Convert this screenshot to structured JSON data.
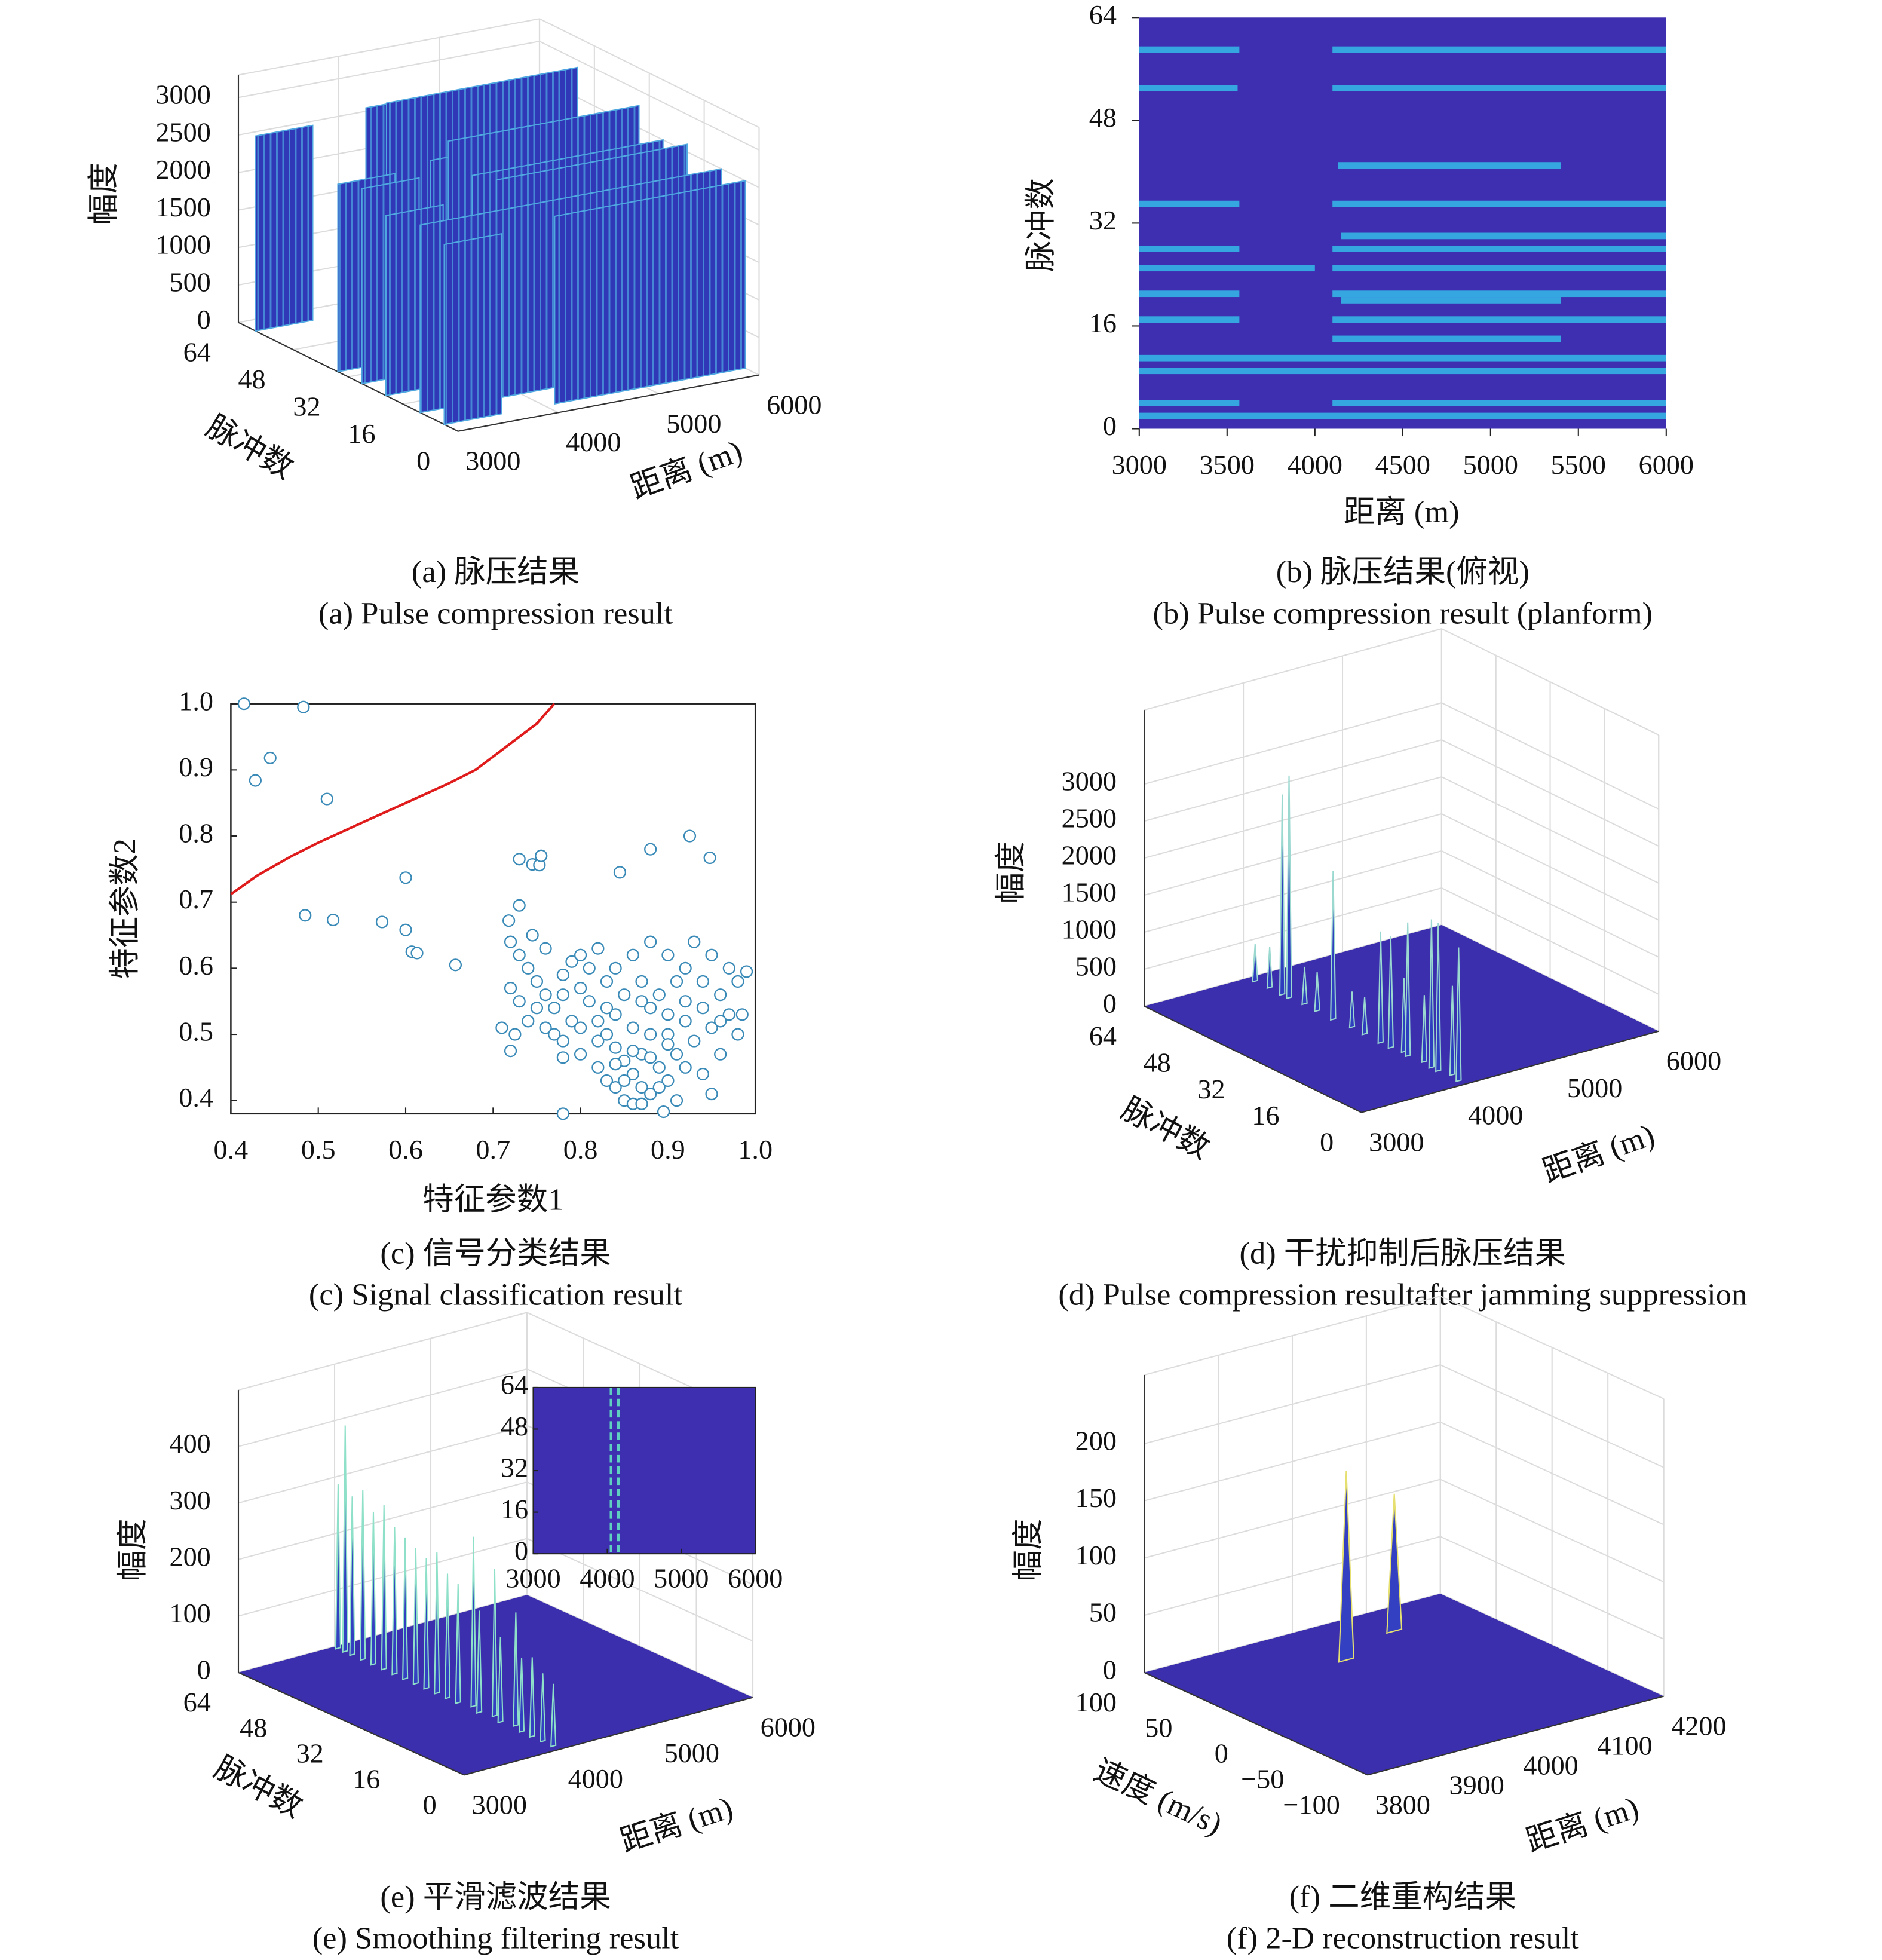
{
  "chart_data": [
    {
      "type": "surface3d",
      "caption_zh": "(a) 脉压结果",
      "caption_en": "(a) Pulse compression result",
      "xlabel": "距离 (m)",
      "ylabel": "脉冲数",
      "zlabel": "幅度",
      "xlim": [
        3000,
        6000
      ],
      "xticks": [
        3000,
        4000,
        5000,
        6000
      ],
      "ylim": [
        0,
        64
      ],
      "yticks": [
        0,
        16,
        32,
        48,
        64
      ],
      "zlim": [
        0,
        3300
      ],
      "zticks": [
        0,
        500,
        1000,
        1500,
        2000,
        2500,
        3000
      ],
      "color": "#3038b8",
      "edge_color": "#4fa8e0",
      "ridges": [
        {
          "pulse": 59,
          "from": 3000,
          "to": 3570,
          "amplitude": 2600
        },
        {
          "pulse": 59,
          "from": 4100,
          "to": 6000,
          "amplitude": 2700
        },
        {
          "pulse": 53,
          "from": 4100,
          "to": 6000,
          "amplitude": 2900
        },
        {
          "pulse": 41,
          "from": 4130,
          "to": 5400,
          "amplitude": 2400
        },
        {
          "pulse": 35,
          "from": 3000,
          "to": 3570,
          "amplitude": 2500
        },
        {
          "pulse": 35,
          "from": 4100,
          "to": 6000,
          "amplitude": 2800
        },
        {
          "pulse": 28,
          "from": 3000,
          "to": 3570,
          "amplitude": 2600
        },
        {
          "pulse": 28,
          "from": 4100,
          "to": 6000,
          "amplitude": 2500
        },
        {
          "pulse": 21,
          "from": 3000,
          "to": 3570,
          "amplitude": 2400
        },
        {
          "pulse": 21,
          "from": 4100,
          "to": 6000,
          "amplitude": 2600
        },
        {
          "pulse": 14,
          "from": 4100,
          "to": 5400,
          "amplitude": 2300
        },
        {
          "pulse": 11,
          "from": 3000,
          "to": 6000,
          "amplitude": 2500
        },
        {
          "pulse": 4,
          "from": 3000,
          "to": 3570,
          "amplitude": 2400
        },
        {
          "pulse": 4,
          "from": 4100,
          "to": 6000,
          "amplitude": 2500
        }
      ]
    },
    {
      "type": "heatmap",
      "caption_zh": "(b) 脉压结果(俯视)",
      "caption_en": "(b) Pulse compression result (planform)",
      "xlabel": "距离 (m)",
      "ylabel": "脉冲数",
      "xlim": [
        3000,
        6000
      ],
      "xticks": [
        3000,
        3500,
        4000,
        4500,
        5000,
        5500,
        6000
      ],
      "ylim": [
        0,
        64
      ],
      "yticks": [
        0,
        16,
        32,
        48,
        64
      ],
      "background_color": "#3d2fb0",
      "color": "#35b4e6",
      "stripes": [
        {
          "pulse": 59,
          "segments": [
            [
              3000,
              3570
            ],
            [
              4100,
              6000
            ]
          ]
        },
        {
          "pulse": 53,
          "segments": [
            [
              3000,
              3560
            ],
            [
              4100,
              6000
            ]
          ]
        },
        {
          "pulse": 41,
          "segments": [
            [
              4130,
              5400
            ]
          ]
        },
        {
          "pulse": 35,
          "segments": [
            [
              3000,
              3570
            ],
            [
              4100,
              6000
            ]
          ]
        },
        {
          "pulse": 30,
          "segments": [
            [
              4150,
              6000
            ]
          ]
        },
        {
          "pulse": 28,
          "segments": [
            [
              3000,
              3570
            ],
            [
              4100,
              6000
            ]
          ]
        },
        {
          "pulse": 25,
          "segments": [
            [
              3000,
              4000
            ],
            [
              4100,
              6000
            ]
          ]
        },
        {
          "pulse": 21,
          "segments": [
            [
              3000,
              3570
            ],
            [
              4100,
              6000
            ]
          ]
        },
        {
          "pulse": 20,
          "segments": [
            [
              4150,
              5400
            ]
          ]
        },
        {
          "pulse": 17,
          "segments": [
            [
              3000,
              3570
            ],
            [
              4100,
              6000
            ]
          ]
        },
        {
          "pulse": 14,
          "segments": [
            [
              4100,
              5400
            ]
          ]
        },
        {
          "pulse": 11,
          "segments": [
            [
              3000,
              6000
            ]
          ]
        },
        {
          "pulse": 9,
          "segments": [
            [
              3000,
              6000
            ]
          ]
        },
        {
          "pulse": 4,
          "segments": [
            [
              3000,
              3570
            ],
            [
              4100,
              6000
            ]
          ]
        },
        {
          "pulse": 2,
          "segments": [
            [
              3000,
              6000
            ]
          ]
        }
      ]
    },
    {
      "type": "scatter",
      "caption_zh": "(c) 信号分类结果",
      "caption_en": "(c) Signal classification result",
      "xlabel": "特征参数1",
      "ylabel": "特征参数2",
      "xlim": [
        0.4,
        1
      ],
      "xticks": [
        0.4,
        0.5,
        0.6,
        0.7,
        0.8,
        0.9,
        {
          "value": 1,
          "label": "1.0"
        }
      ],
      "ylim": [
        0.38,
        1
      ],
      "yticks": [
        0.4,
        0.5,
        0.6,
        0.7,
        0.8,
        0.9,
        {
          "value": 1,
          "label": "1.0"
        }
      ],
      "color": "#3a8ab8",
      "x": [
        0.415,
        0.483,
        0.445,
        0.428,
        0.51,
        0.485,
        0.517,
        0.573,
        0.6,
        0.6,
        0.607,
        0.613,
        0.657,
        0.73,
        0.745,
        0.753,
        0.755,
        0.73,
        0.718,
        0.745,
        0.845,
        0.88,
        0.925,
        0.948,
        0.78,
        0.895,
        0.72,
        0.78,
        0.72,
        0.73,
        0.74,
        0.71,
        0.725,
        0.75,
        0.76,
        0.77,
        0.78,
        0.79,
        0.8,
        0.81,
        0.82,
        0.83,
        0.84,
        0.85,
        0.86,
        0.87,
        0.85,
        0.83,
        0.8,
        0.82,
        0.84,
        0.86,
        0.88,
        0.9,
        0.92,
        0.94,
        0.96,
        0.98,
        0.99,
        0.97,
        0.95,
        0.93,
        0.91,
        0.89,
        0.87,
        0.88,
        0.9,
        0.92,
        0.76,
        0.78,
        0.8,
        0.82,
        0.84,
        0.86,
        0.88,
        0.9,
        0.92,
        0.94,
        0.95,
        0.96,
        0.98,
        0.985,
        0.97,
        0.95,
        0.93,
        0.91,
        0.89,
        0.87,
        0.85,
        0.83,
        0.81,
        0.79,
        0.77,
        0.75,
        0.74,
        0.73,
        0.72,
        0.76,
        0.82,
        0.84,
        0.86,
        0.88,
        0.9,
        0.92,
        0.94,
        0.96,
        0.85,
        0.87,
        0.89,
        0.91,
        0.84,
        0.86,
        0.88,
        0.9,
        0.8,
        0.78,
        0.83,
        0.87
      ],
      "y": [
        1,
        0.995,
        0.918,
        0.884,
        0.856,
        0.68,
        0.673,
        0.67,
        0.737,
        0.658,
        0.625,
        0.623,
        0.605,
        0.765,
        0.757,
        0.756,
        0.77,
        0.695,
        0.672,
        0.65,
        0.745,
        0.78,
        0.8,
        0.767,
        0.38,
        0.383,
        0.475,
        0.465,
        0.57,
        0.55,
        0.52,
        0.51,
        0.5,
        0.58,
        0.56,
        0.54,
        0.59,
        0.61,
        0.57,
        0.55,
        0.52,
        0.5,
        0.48,
        0.46,
        0.44,
        0.42,
        0.4,
        0.43,
        0.62,
        0.63,
        0.6,
        0.62,
        0.64,
        0.62,
        0.6,
        0.58,
        0.56,
        0.58,
        0.595,
        0.53,
        0.51,
        0.49,
        0.47,
        0.45,
        0.47,
        0.5,
        0.53,
        0.55,
        0.51,
        0.49,
        0.47,
        0.45,
        0.42,
        0.395,
        0.41,
        0.43,
        0.45,
        0.44,
        0.41,
        0.47,
        0.5,
        0.53,
        0.6,
        0.62,
        0.64,
        0.58,
        0.56,
        0.58,
        0.56,
        0.58,
        0.6,
        0.52,
        0.5,
        0.54,
        0.6,
        0.62,
        0.64,
        0.63,
        0.49,
        0.53,
        0.51,
        0.54,
        0.5,
        0.52,
        0.54,
        0.52,
        0.43,
        0.395,
        0.42,
        0.4,
        0.455,
        0.475,
        0.465,
        0.485,
        0.51,
        0.56,
        0.54,
        0.55
      ],
      "boundary": {
        "color": "#e01b1b",
        "x": [
          0.4,
          0.43,
          0.47,
          0.5,
          0.55,
          0.6,
          0.65,
          0.68,
          0.72,
          0.75,
          0.77
        ],
        "y": [
          0.712,
          0.74,
          0.77,
          0.79,
          0.82,
          0.85,
          0.88,
          0.9,
          0.94,
          0.97,
          1
        ]
      }
    },
    {
      "type": "surface3d",
      "caption_zh": "(d) 干扰抑制后脉压结果",
      "caption_en": "(d) Pulse compression resultafter jamming suppression",
      "xlabel": "距离 (m)",
      "ylabel": "脉冲数",
      "zlabel": "幅度",
      "xlim": [
        3000,
        6000
      ],
      "xticks": [
        3000,
        4000,
        5000,
        6000
      ],
      "ylim": [
        0,
        64
      ],
      "yticks": [
        0,
        16,
        32,
        48,
        64
      ],
      "zlim": [
        0,
        4000
      ],
      "zticks": [
        0,
        500,
        1000,
        1500,
        2000,
        2500,
        3000
      ],
      "floor_color": "#3b2fae",
      "color": "#2f3dbf",
      "edge_color": "#9ad8d0",
      "peaks": [
        {
          "x": 4050,
          "y": 62,
          "z": 500
        },
        {
          "x": 4060,
          "y": 58,
          "z": 550
        },
        {
          "x": 4050,
          "y": 54,
          "z": 2700
        },
        {
          "x": 4050,
          "y": 52,
          "z": 3000
        },
        {
          "x": 4070,
          "y": 48,
          "z": 500
        },
        {
          "x": 4060,
          "y": 44,
          "z": 520
        },
        {
          "x": 4050,
          "y": 39,
          "z": 2000
        },
        {
          "x": 4070,
          "y": 34,
          "z": 480
        },
        {
          "x": 4060,
          "y": 30,
          "z": 500
        },
        {
          "x": 4050,
          "y": 25,
          "z": 1500
        },
        {
          "x": 4050,
          "y": 22,
          "z": 1500
        },
        {
          "x": 4080,
          "y": 19,
          "z": 1000
        },
        {
          "x": 4050,
          "y": 17,
          "z": 1800
        },
        {
          "x": 4080,
          "y": 13,
          "z": 900
        },
        {
          "x": 4050,
          "y": 10,
          "z": 2000
        },
        {
          "x": 4050,
          "y": 8,
          "z": 2000
        },
        {
          "x": 4090,
          "y": 5,
          "z": 1200
        },
        {
          "x": 4050,
          "y": 2,
          "z": 1800
        }
      ]
    },
    {
      "type": "surface3d",
      "caption_zh": "(e) 平滑滤波结果",
      "caption_en": "(e) Smoothing filtering result",
      "xlabel": "距离 (m)",
      "ylabel": "脉冲数",
      "zlabel": "幅度",
      "xlim": [
        3000,
        6000
      ],
      "xticks": [
        3000,
        4000,
        5000,
        6000
      ],
      "ylim": [
        0,
        64
      ],
      "yticks": [
        0,
        16,
        32,
        48,
        64
      ],
      "zlim": [
        0,
        500
      ],
      "zticks": [
        0,
        100,
        200,
        300,
        400
      ],
      "floor_color": "#3b2fae",
      "color": "#3440c2",
      "edge_color": "#8fe0c8",
      "peaks": [
        {
          "x": 4000,
          "y": 63,
          "z": 290
        },
        {
          "x": 4000,
          "y": 61,
          "z": 400
        },
        {
          "x": 4000,
          "y": 59,
          "z": 280
        },
        {
          "x": 4000,
          "y": 56,
          "z": 300
        },
        {
          "x": 4000,
          "y": 53,
          "z": 270
        },
        {
          "x": 4000,
          "y": 50,
          "z": 290
        },
        {
          "x": 4000,
          "y": 47,
          "z": 260
        },
        {
          "x": 4000,
          "y": 44,
          "z": 250
        },
        {
          "x": 4000,
          "y": 41,
          "z": 240
        },
        {
          "x": 4000,
          "y": 38,
          "z": 230
        },
        {
          "x": 4000,
          "y": 35,
          "z": 250
        },
        {
          "x": 4000,
          "y": 32,
          "z": 220
        },
        {
          "x": 4000,
          "y": 29,
          "z": 210
        },
        {
          "x": 4050,
          "y": 26,
          "z": 300
        },
        {
          "x": 4000,
          "y": 23,
          "z": 180
        },
        {
          "x": 4050,
          "y": 20,
          "z": 260
        },
        {
          "x": 4000,
          "y": 17,
          "z": 150
        },
        {
          "x": 4050,
          "y": 14,
          "z": 200
        },
        {
          "x": 4000,
          "y": 11,
          "z": 130
        },
        {
          "x": 4000,
          "y": 8,
          "z": 140
        },
        {
          "x": 4000,
          "y": 5,
          "z": 120
        },
        {
          "x": 4000,
          "y": 2,
          "z": 110
        }
      ],
      "inset": {
        "xlim": [
          3000,
          6000
        ],
        "xticks": [
          3000,
          4000,
          5000,
          6000
        ],
        "ylim": [
          0,
          64
        ],
        "yticks": [
          0,
          16,
          32,
          48,
          64
        ],
        "background_color": "#3d2fb0",
        "lines": [
          4050,
          4150
        ],
        "line_color": "#5fd0c0"
      }
    },
    {
      "type": "surface3d",
      "caption_zh": "(f) 二维重构结果",
      "caption_en": "(f) 2-D reconstruction result",
      "xlabel": "距离 (m)",
      "ylabel": "速度 (m/s)",
      "zlabel": "幅度",
      "xlim": [
        3800,
        4200
      ],
      "xticks": [
        3800,
        3900,
        4000,
        4100,
        4200
      ],
      "ylim": [
        -100,
        100
      ],
      "yticks": [
        {
          "value": -100,
          "label": "−100"
        },
        {
          "value": -50,
          "label": "−50"
        },
        0,
        50,
        100
      ],
      "zlim": [
        0,
        260
      ],
      "zticks": [
        0,
        50,
        100,
        150,
        200
      ],
      "floor_color": "#3b2fae",
      "color": "#3440c2",
      "edge_color": "#e6e070",
      "peaks": [
        {
          "x": 4091,
          "y": 69,
          "z": 120
        },
        {
          "x": 3996,
          "y": 49,
          "z": 165
        }
      ]
    }
  ]
}
